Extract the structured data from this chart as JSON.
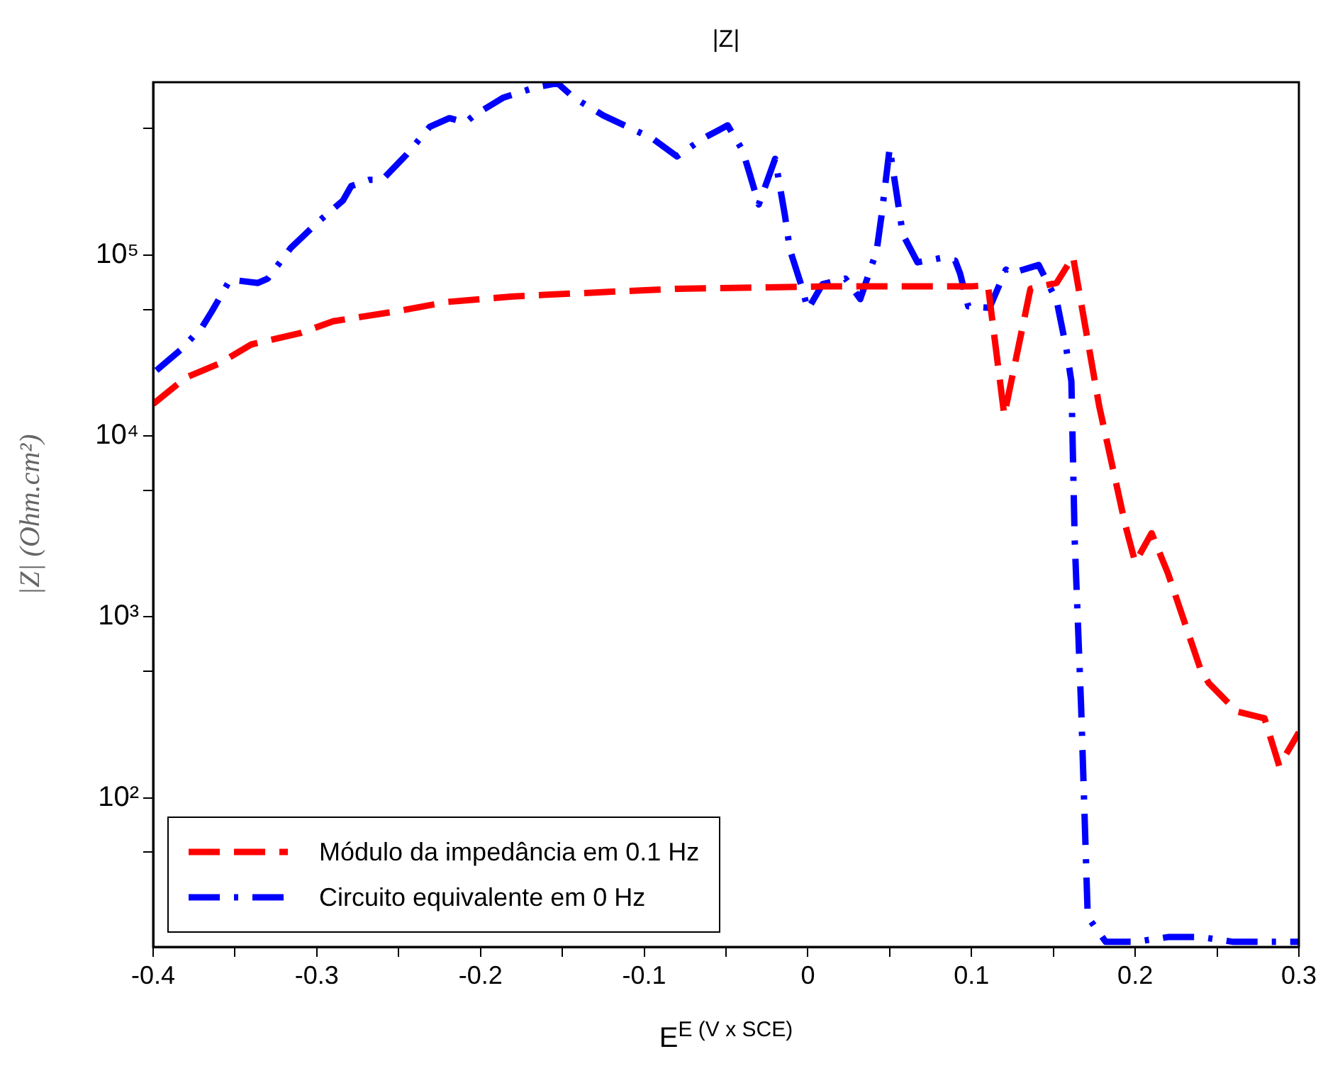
{
  "chart_data": {
    "type": "line",
    "title": "|Z|",
    "xlabel": "E$^{E (V x SCE)}$",
    "ylabel": "|Z| (Ohm.cm²)",
    "xlim": [
      -0.4,
      0.3
    ],
    "xticks": [
      -0.4,
      {
        "value": -0.35,
        "label": null
      },
      -0.3,
      {
        "value": -0.25,
        "label": null
      },
      -0.2,
      {
        "value": -0.15,
        "label": null
      },
      -0.1,
      {
        "value": -0.05,
        "label": null
      },
      0,
      {
        "value": 0.05,
        "label": null
      },
      0.1,
      {
        "value": 0.15,
        "label": null
      },
      0.2,
      {
        "value": 0.25,
        "label": null
      },
      0.3
    ],
    "ylim": [
      15,
      900000
    ],
    "yticks": [
      {
        "value": 50,
        "label": null
      },
      {
        "value": 100,
        "label": "10²"
      },
      {
        "value": 500,
        "label": null
      },
      {
        "value": 1000,
        "label": "10³"
      },
      {
        "value": 5000,
        "label": null
      },
      {
        "value": 10000,
        "label": "10⁴"
      },
      {
        "value": 50000,
        "label": null
      },
      {
        "value": 100000,
        "label": "10⁵"
      },
      {
        "value": 500000,
        "label": null
      }
    ],
    "log": "y",
    "grid": false,
    "legend": "bottom left",
    "marker": "none",
    "series": [
      {
        "name": "Módulo da impedância em 0.1 Hz",
        "color": "#ff0000",
        "line_style": "dashed",
        "x": [
          -0.4,
          -0.38,
          -0.36,
          -0.34,
          -0.31,
          -0.29,
          -0.25,
          -0.22,
          -0.18,
          -0.13,
          -0.08,
          -0.03,
          0.01,
          0.06,
          0.1,
          0.11,
          0.12,
          0.136,
          0.152,
          0.162,
          0.178,
          0.194,
          0.2,
          0.21,
          0.22,
          0.24,
          0.245,
          0.262,
          0.279,
          0.288,
          0.3
        ],
        "values": [
          15000,
          21000,
          25000,
          32000,
          37000,
          43000,
          49000,
          55000,
          59000,
          62000,
          65000,
          66000,
          67000,
          67000,
          67000,
          68000,
          13000,
          65000,
          70000,
          98000,
          14600,
          3200,
          2000,
          2900,
          1740,
          510,
          430,
          300,
          275,
          150,
          230
        ]
      },
      {
        "name": "Circuito equivalente em 0 Hz",
        "color": "#0000ff",
        "line_style": "dashdot",
        "x": [
          -0.398,
          -0.383,
          -0.37,
          -0.364,
          -0.353,
          -0.336,
          -0.33,
          -0.316,
          -0.3,
          -0.284,
          -0.279,
          -0.268,
          -0.26,
          -0.245,
          -0.231,
          -0.219,
          -0.209,
          -0.204,
          -0.186,
          -0.167,
          -0.153,
          -0.143,
          -0.125,
          -0.106,
          -0.095,
          -0.08,
          -0.064,
          -0.049,
          -0.04,
          -0.036,
          -0.03,
          -0.02,
          -0.014,
          -0.011,
          -0.004,
          0.0,
          0.009,
          0.023,
          0.032,
          0.042,
          0.045,
          0.05,
          0.058,
          0.067,
          0.081,
          0.09,
          0.093,
          0.098,
          0.111,
          0.121,
          0.124,
          0.141,
          0.152,
          0.158,
          0.161,
          0.163,
          0.167,
          0.171,
          0.182,
          0.2,
          0.22,
          0.24,
          0.26,
          0.28,
          0.3
        ],
        "values": [
          23000,
          30000,
          40000,
          49000,
          73000,
          70000,
          74000,
          109000,
          150000,
          200000,
          240000,
          260000,
          260000,
          360000,
          510000,
          570000,
          540000,
          590000,
          740000,
          840000,
          890000,
          740000,
          590000,
          490000,
          440000,
          350000,
          440000,
          520000,
          380000,
          290000,
          190000,
          340000,
          165000,
          107000,
          68000,
          50000,
          69000,
          74000,
          57000,
          105000,
          165000,
          390000,
          130000,
          91000,
          96000,
          93000,
          79000,
          52000,
          51000,
          83000,
          79000,
          88000,
          56000,
          30000,
          20000,
          2700,
          310,
          22,
          16,
          16,
          17,
          17,
          16,
          16,
          16
        ]
      }
    ]
  }
}
